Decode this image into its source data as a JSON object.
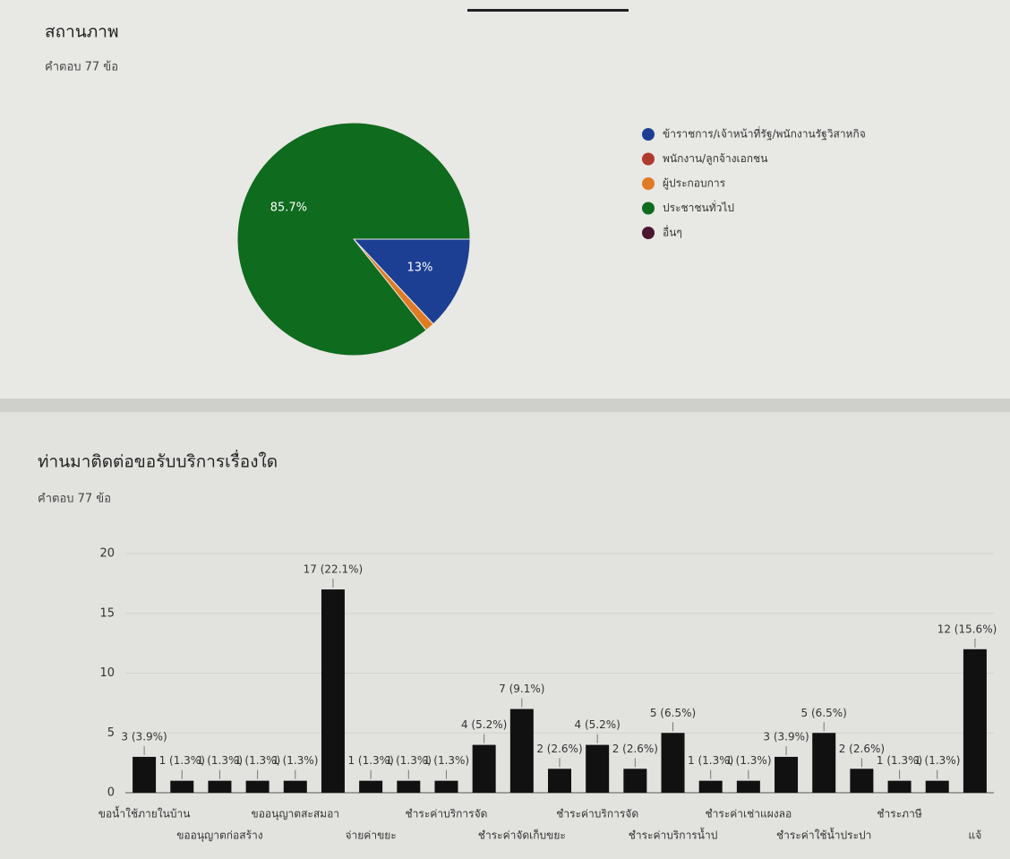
{
  "chart_data": [
    {
      "type": "pie",
      "title": "สถานภาพ",
      "subtitle": "คำตอบ 77 ข้อ",
      "categories": [
        "ข้าราชการ/เจ้าหน้าที่รัฐ/พนักงานรัฐวิสาหกิจ",
        "พนักงาน/ลูกจ้างเอกชน",
        "ผู้ประกอบการ",
        "ประชาชนทั่วไป",
        "อื่นๆ"
      ],
      "values": [
        13,
        0,
        1.3,
        85.7,
        0
      ],
      "value_labels": [
        "13%",
        null,
        null,
        "85.7%",
        null
      ],
      "colors": [
        "#1c3f94",
        "#b03a2e",
        "#e07b24",
        "#0f6b1e",
        "#4a1630"
      ],
      "legend": "right"
    },
    {
      "type": "bar",
      "title": "ท่านมาติดต่อขอรับบริการเรื่องใด",
      "subtitle": "คำตอบ 77 ข้อ",
      "categories": [
        "ขอน้ำใช้ภายในบ้าน",
        null,
        "ขออนุญาตก่อสร้าง",
        null,
        "ขออนุญาตสะสมอา",
        null,
        "จ่ายค่าขยะ",
        null,
        "ชำระค่าบริการจัด",
        null,
        "ชำระค่าจัดเก็บขยะ",
        null,
        "ชำระค่าบริการจัด",
        null,
        "ชำระค่าบริการน้ำป",
        null,
        "ชำระค่าเช่าแผงลอ",
        null,
        "ชำระค่าใช้น้ำประปา",
        null,
        "ชำระภาษี",
        null,
        "แจ้"
      ],
      "values": [
        3,
        1,
        1,
        1,
        1,
        17,
        1,
        1,
        1,
        4,
        7,
        2,
        4,
        2,
        5,
        1,
        1,
        3,
        5,
        2,
        1,
        1,
        12
      ],
      "value_labels": [
        "3 (3.9%)",
        "1 (1.3%)",
        "1 (1.3%)",
        "1 (1.3%)",
        "1 (1.3%)",
        "17 (22.1%)",
        "1 (1.3%)",
        "1 (1.3%)",
        "1 (1.3%)",
        "4 (5.2%)",
        "7 (9.1%)",
        "2 (2.6%)",
        "4 (5.2%)",
        "2 (2.6%)",
        "5 (6.5%)",
        "1 (1.3%)",
        "1 (1.3%)",
        "3 (3.9%)",
        "5 (6.5%)",
        "2 (2.6%)",
        "1 (1.3%)",
        "1 (1.3%)",
        "12 (15.6%)"
      ],
      "color": "#111111",
      "ylim": [
        0,
        20
      ],
      "yticks": [
        0,
        5,
        10,
        15,
        20
      ],
      "grid": true
    }
  ]
}
